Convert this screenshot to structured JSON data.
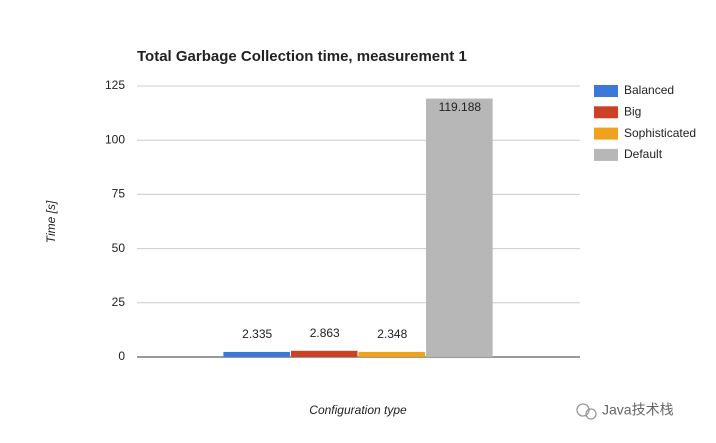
{
  "chart_data": {
    "type": "bar",
    "title": "Total Garbage Collection time, measurement 1",
    "x_label": "Configuration type",
    "y_label": "Time [s]",
    "categories": [
      null
    ],
    "series": [
      {
        "name": "Balanced",
        "color": "#3c78d8",
        "values": [
          2.335
        ]
      },
      {
        "name": "Big",
        "color": "#cc4125",
        "values": [
          2.863
        ]
      },
      {
        "name": "Sophisticated",
        "color": "#f1a21c",
        "values": [
          2.348
        ]
      },
      {
        "name": "Default",
        "color": "#b7b7b7",
        "values": [
          119.188
        ]
      }
    ],
    "ylim": [
      0,
      125
    ],
    "yticks": [
      0,
      25,
      50,
      75,
      100,
      125
    ],
    "grid": true,
    "legend": "right",
    "value_label_text_color": "series",
    "watermark": "Java技术栈"
  }
}
